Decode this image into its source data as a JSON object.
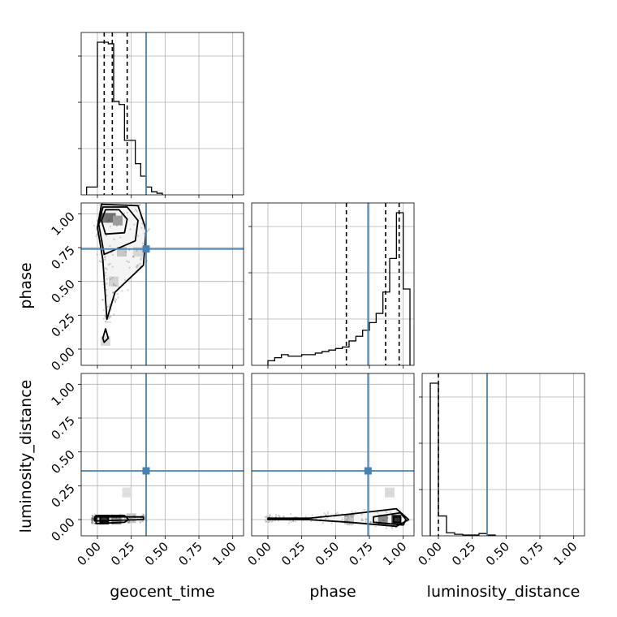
{
  "chart_data": {
    "type": "corner",
    "parameters": [
      "geocent_time",
      "phase",
      "luminosity_distance"
    ],
    "xlim": [
      -0.12,
      1.08
    ],
    "ylim": [
      -0.12,
      1.08
    ],
    "ticks": [
      0.0,
      0.25,
      0.5,
      0.75,
      1.0
    ],
    "tick_labels": [
      "0.00",
      "0.25",
      "0.50",
      "0.75",
      "1.00"
    ],
    "grid": true,
    "colors": {
      "truth": "#4682b4",
      "hist": "#000000",
      "grid": "#b0b0b0"
    },
    "truths": {
      "geocent_time": 0.36,
      "phase": 0.74,
      "luminosity_distance": 0.36
    },
    "marginals": [
      {
        "parameter": "geocent_time",
        "quantiles": [
          0.05,
          0.11,
          0.22
        ],
        "bin_edges": [
          -0.08,
          -0.04,
          0.0,
          0.04,
          0.08,
          0.12,
          0.16,
          0.2,
          0.24,
          0.28,
          0.32,
          0.36,
          0.4,
          0.44,
          0.48
        ],
        "counts": [
          0.05,
          0.05,
          0.98,
          0.98,
          0.97,
          0.6,
          0.58,
          0.35,
          0.35,
          0.2,
          0.12,
          0.05,
          0.02,
          0.01
        ]
      },
      {
        "parameter": "phase",
        "quantiles": [
          0.58,
          0.87,
          0.97
        ],
        "bin_edges": [
          0.0,
          0.05,
          0.1,
          0.15,
          0.2,
          0.25,
          0.3,
          0.35,
          0.4,
          0.45,
          0.5,
          0.55,
          0.6,
          0.65,
          0.7,
          0.75,
          0.8,
          0.85,
          0.9,
          0.95,
          1.0,
          1.05
        ],
        "counts": [
          0.03,
          0.05,
          0.07,
          0.06,
          0.06,
          0.07,
          0.07,
          0.08,
          0.09,
          0.1,
          0.11,
          0.12,
          0.16,
          0.19,
          0.23,
          0.28,
          0.34,
          0.48,
          0.7,
          1.0,
          0.5
        ]
      },
      {
        "parameter": "luminosity_distance",
        "quantiles": [
          0.0
        ],
        "bin_edges": [
          -0.06,
          0.0,
          0.06,
          0.12,
          0.18,
          0.24,
          0.3,
          0.36,
          0.42
        ],
        "counts": [
          1.0,
          0.13,
          0.02,
          0.01,
          0.005,
          0.005,
          0.015,
          0.005
        ]
      }
    ],
    "panels": [
      {
        "x": "geocent_time",
        "y": "phase",
        "density": [
          {
            "x": 0.05,
            "y": 0.97,
            "w": 0.58
          },
          {
            "x": 0.1,
            "y": 0.97,
            "w": 0.62
          },
          {
            "x": 0.15,
            "y": 0.95,
            "w": 0.4
          },
          {
            "x": 0.18,
            "y": 0.72,
            "w": 0.18
          },
          {
            "x": 0.3,
            "y": 0.72,
            "w": 0.1
          },
          {
            "x": 0.12,
            "y": 0.5,
            "w": 0.12
          },
          {
            "x": 0.06,
            "y": 0.06,
            "w": 0.08
          }
        ],
        "contours": [
          {
            "level": 0.39,
            "points": [
              [
                0.06,
                0.85
              ],
              [
                0.2,
                0.86
              ],
              [
                0.22,
                0.96
              ],
              [
                0.16,
                1.03
              ],
              [
                0.06,
                1.03
              ],
              [
                0.03,
                0.95
              ],
              [
                0.06,
                0.85
              ]
            ]
          },
          {
            "level": 0.86,
            "points": [
              [
                0.05,
                0.7
              ],
              [
                0.28,
                0.8
              ],
              [
                0.3,
                0.95
              ],
              [
                0.22,
                1.05
              ],
              [
                0.04,
                1.05
              ],
              [
                0.01,
                0.92
              ],
              [
                0.05,
                0.7
              ]
            ]
          },
          {
            "level": 0.99,
            "points": [
              [
                0.07,
                0.22
              ],
              [
                0.13,
                0.42
              ],
              [
                0.34,
                0.62
              ],
              [
                0.36,
                0.88
              ],
              [
                0.3,
                1.06
              ],
              [
                0.03,
                1.07
              ],
              [
                0.0,
                0.9
              ],
              [
                0.04,
                0.66
              ],
              [
                0.07,
                0.22
              ]
            ]
          },
          {
            "level": 0.99,
            "points": [
              [
                0.05,
                0.05
              ],
              [
                0.08,
                0.08
              ],
              [
                0.06,
                0.15
              ],
              [
                0.04,
                0.08
              ],
              [
                0.05,
                0.05
              ]
            ]
          }
        ]
      },
      {
        "x": "geocent_time",
        "y": "luminosity_distance",
        "density": [
          {
            "x": 0.05,
            "y": 0.0,
            "w": 0.9
          },
          {
            "x": 0.14,
            "y": 0.0,
            "w": 0.45
          },
          {
            "x": 0.25,
            "y": 0.01,
            "w": 0.18
          },
          {
            "x": 0.22,
            "y": 0.2,
            "w": 0.06
          }
        ],
        "contours": [
          {
            "level": 0.39,
            "points": [
              [
                0.02,
                -0.02
              ],
              [
                0.08,
                -0.02
              ],
              [
                0.08,
                0.02
              ],
              [
                0.02,
                0.02
              ],
              [
                0.02,
                -0.02
              ]
            ]
          },
          {
            "level": 0.86,
            "points": [
              [
                -0.01,
                -0.03
              ],
              [
                0.2,
                -0.02
              ],
              [
                0.23,
                0.0
              ],
              [
                0.2,
                0.03
              ],
              [
                -0.01,
                0.03
              ],
              [
                -0.01,
                -0.03
              ]
            ]
          },
          {
            "level": 0.99,
            "points": [
              [
                -0.02,
                -0.01
              ],
              [
                0.34,
                0.0
              ],
              [
                0.34,
                0.02
              ],
              [
                -0.02,
                0.02
              ],
              [
                -0.02,
                -0.01
              ]
            ]
          }
        ]
      },
      {
        "x": "phase",
        "y": "luminosity_distance",
        "density": [
          {
            "x": 0.95,
            "y": 0.0,
            "w": 0.9
          },
          {
            "x": 0.85,
            "y": 0.0,
            "w": 0.5
          },
          {
            "x": 0.6,
            "y": 0.0,
            "w": 0.2
          },
          {
            "x": 0.9,
            "y": 0.2,
            "w": 0.08
          }
        ],
        "contours": [
          {
            "level": 0.39,
            "points": [
              [
                0.93,
                -0.02
              ],
              [
                0.98,
                -0.02
              ],
              [
                0.98,
                0.02
              ],
              [
                0.93,
                0.02
              ],
              [
                0.93,
                -0.02
              ]
            ]
          },
          {
            "level": 0.86,
            "points": [
              [
                0.78,
                -0.02
              ],
              [
                1.0,
                -0.04
              ],
              [
                1.02,
                0.0
              ],
              [
                0.98,
                0.05
              ],
              [
                0.78,
                0.02
              ],
              [
                0.78,
                -0.02
              ]
            ]
          },
          {
            "level": 0.99,
            "points": [
              [
                0.0,
                0.0
              ],
              [
                0.3,
                0.0
              ],
              [
                0.6,
                -0.02
              ],
              [
                0.95,
                -0.05
              ],
              [
                1.04,
                0.0
              ],
              [
                0.95,
                0.08
              ],
              [
                0.6,
                0.04
              ],
              [
                0.3,
                0.01
              ],
              [
                0.0,
                0.01
              ],
              [
                0.0,
                0.0
              ]
            ]
          }
        ]
      }
    ]
  }
}
